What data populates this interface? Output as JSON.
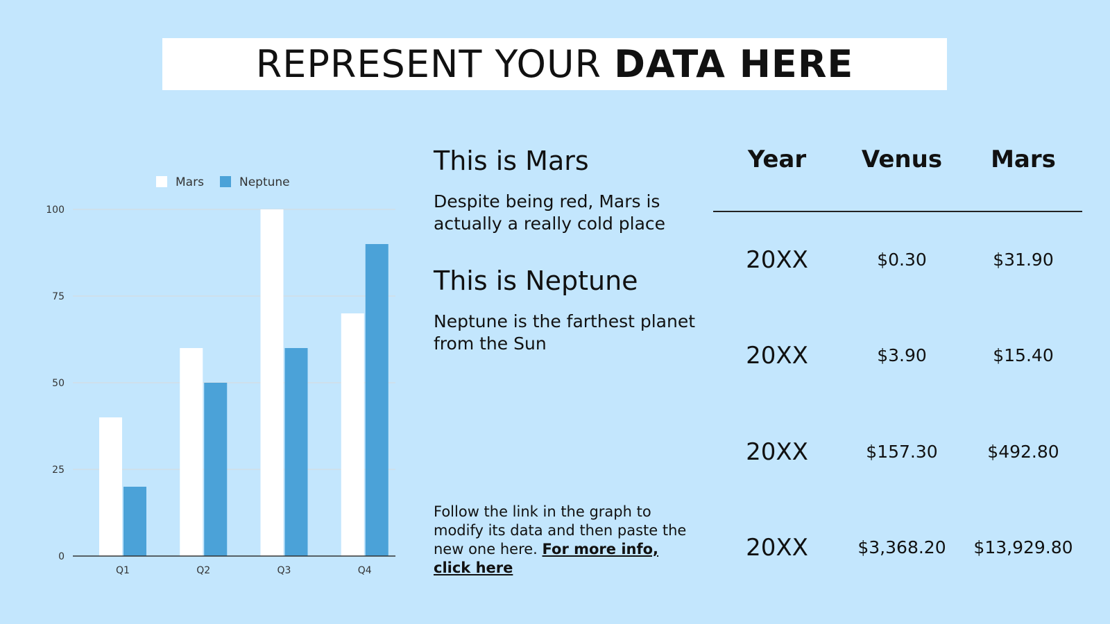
{
  "title": {
    "light": "REPRESENT YOUR",
    "bold": "DATA HERE"
  },
  "left_text": {
    "mars_title": "This is Mars",
    "mars_desc": "Despite being red, Mars is actually a really cold place",
    "neptune_title": "This is Neptune",
    "neptune_desc": "Neptune is the farthest planet from the Sun",
    "follow_text": "Follow the link in the graph to modify its data and then paste the new one here.",
    "follow_link": "For more info, click here"
  },
  "table": {
    "headers": [
      "Year",
      "Venus",
      "Mars"
    ],
    "rows": [
      [
        "20XX",
        "$0.30",
        "$31.90"
      ],
      [
        "20XX",
        "$3.90",
        "$15.40"
      ],
      [
        "20XX",
        "$157.30",
        "$492.80"
      ],
      [
        "20XX",
        "$3,368.20",
        "$13,929.80"
      ]
    ]
  },
  "colors": {
    "background": "#c3e6fd",
    "mars": "#ffffff",
    "neptune": "#4ba2d8",
    "grid": "#d4dde3",
    "axis": "#333333"
  },
  "chart_data": {
    "type": "bar",
    "categories": [
      "Q1",
      "Q2",
      "Q3",
      "Q4"
    ],
    "series": [
      {
        "name": "Mars",
        "values": [
          40,
          60,
          100,
          70
        ]
      },
      {
        "name": "Neptune",
        "values": [
          20,
          50,
          60,
          90
        ]
      }
    ],
    "ylim": [
      0,
      100
    ],
    "yticks": [
      0,
      25,
      50,
      75,
      100
    ],
    "legend": "top",
    "grid": true
  }
}
